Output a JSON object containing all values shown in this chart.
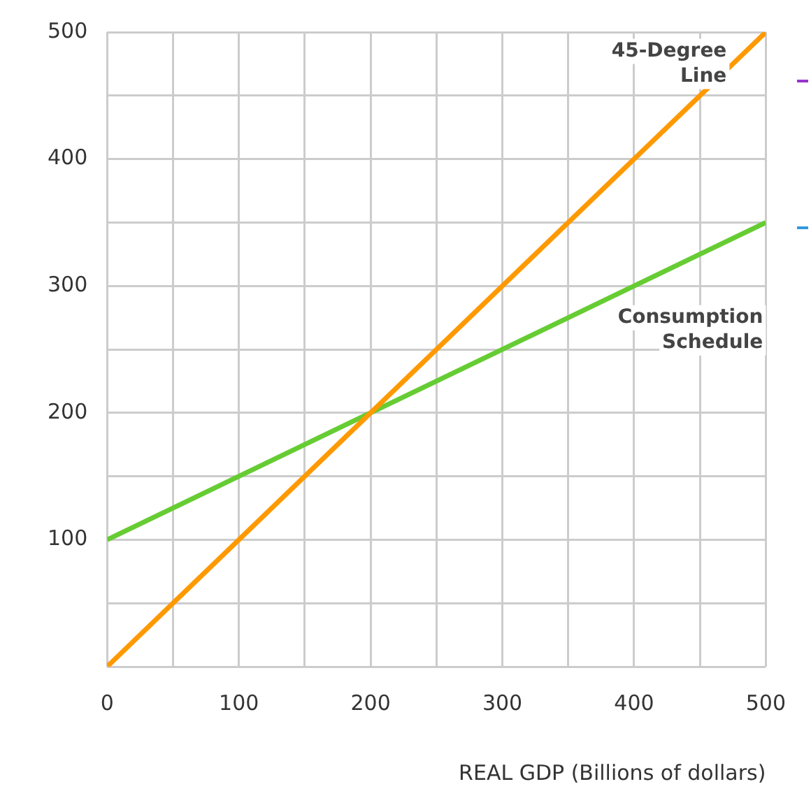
{
  "chart_data": {
    "type": "line",
    "xlabel": "REAL GDP (Billions of dollars)",
    "x": [
      0,
      500
    ],
    "series": [
      {
        "color": "#ff9900",
        "values": [
          0,
          500
        ]
      },
      {
        "color": "#66cc33",
        "values": [
          100,
          350
        ]
      }
    ],
    "xlim": [
      0,
      500
    ],
    "ylim": [
      0,
      500
    ],
    "xticks": [
      0,
      {
        "value": 50,
        "label": null
      },
      100,
      {
        "value": 150,
        "label": null
      },
      200,
      {
        "value": 250,
        "label": null
      },
      300,
      {
        "value": 350,
        "label": null
      },
      400,
      {
        "value": 450,
        "label": null
      },
      500
    ],
    "yticks": [
      {
        "value": 0,
        "label": null
      },
      {
        "value": 50,
        "label": null
      },
      100,
      {
        "value": 150,
        "label": null
      },
      200,
      {
        "value": 250,
        "label": null
      },
      300,
      {
        "value": 350,
        "label": null
      },
      400,
      {
        "value": 450,
        "label": null
      },
      500
    ],
    "annotations": [
      "45-Degree\nLine",
      "Consumption\nSchedule"
    ],
    "grid": true,
    "legend": false,
    "marker": "none",
    "line_style": "solid"
  }
}
